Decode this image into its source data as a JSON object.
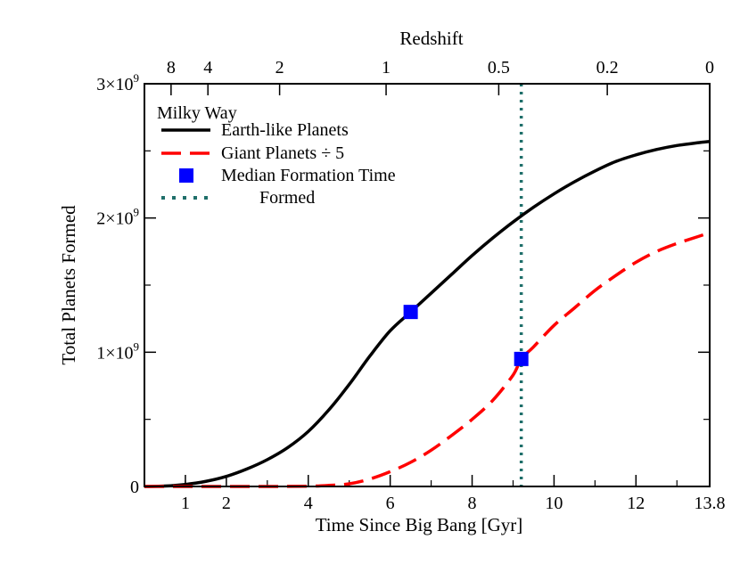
{
  "chart_data": {
    "type": "line",
    "title": "",
    "xlabel": "Time Since Big Bang [Gyr]",
    "ylabel": "Total Planets Formed",
    "top_axis_title": "Redshift",
    "xlim": [
      0,
      13.8
    ],
    "ylim": [
      0,
      3000000000
    ],
    "grid": false,
    "legend_position": "top-left",
    "legend_title": "Milky Way",
    "x_ticks": [
      {
        "value": 1,
        "label": "1"
      },
      {
        "value": 2,
        "label": "2"
      },
      {
        "value": 4,
        "label": "4"
      },
      {
        "value": 6,
        "label": "6"
      },
      {
        "value": 8,
        "label": "8"
      },
      {
        "value": 10,
        "label": "10"
      },
      {
        "value": 12,
        "label": "12"
      },
      {
        "value": 13.8,
        "label": "13.8"
      }
    ],
    "y_ticks": [
      {
        "value": 0,
        "label": "0",
        "exp": ""
      },
      {
        "value": 1000000000,
        "label": "1×10",
        "exp": "9"
      },
      {
        "value": 2000000000,
        "label": "2×10",
        "exp": "9"
      },
      {
        "value": 3000000000,
        "label": "3×10",
        "exp": "9"
      }
    ],
    "redshift_ticks": [
      {
        "time": 0.65,
        "label": "8"
      },
      {
        "time": 1.55,
        "label": "4"
      },
      {
        "time": 3.3,
        "label": "2"
      },
      {
        "time": 5.9,
        "label": "1"
      },
      {
        "time": 8.65,
        "label": "0.5"
      },
      {
        "time": 11.3,
        "label": "0.2"
      },
      {
        "time": 13.8,
        "label": "0"
      }
    ],
    "series": [
      {
        "name": "Earth-like Planets",
        "color": "#000000",
        "style": "solid",
        "x": [
          0,
          0.5,
          1,
          1.5,
          2,
          2.5,
          3,
          3.5,
          4,
          4.5,
          5,
          5.5,
          6,
          6.5,
          7,
          7.5,
          8,
          8.5,
          9,
          9.5,
          10,
          10.5,
          11,
          11.5,
          12,
          12.5,
          13,
          13.5,
          13.8
        ],
        "y": [
          0,
          3000000,
          15000000,
          38000000,
          75000000,
          130000000,
          200000000,
          290000000,
          410000000,
          570000000,
          760000000,
          970000000,
          1160000000,
          1300000000,
          1440000000,
          1580000000,
          1720000000,
          1850000000,
          1970000000,
          2080000000,
          2180000000,
          2270000000,
          2350000000,
          2420000000,
          2470000000,
          2510000000,
          2540000000,
          2560000000,
          2570000000
        ]
      },
      {
        "name": "Giant Planets ÷ 5",
        "color": "#ff0000",
        "style": "dashed",
        "x": [
          0,
          1,
          2,
          3,
          4,
          4.5,
          5,
          5.5,
          6,
          6.5,
          7,
          7.5,
          8,
          8.5,
          9,
          9.2,
          9.5,
          10,
          10.5,
          11,
          11.5,
          12,
          12.5,
          13,
          13.5,
          13.8
        ],
        "y": [
          0,
          0,
          0,
          0,
          2000000,
          8000000,
          20000000,
          55000000,
          110000000,
          180000000,
          270000000,
          380000000,
          500000000,
          640000000,
          830000000,
          950000000,
          1040000000,
          1200000000,
          1330000000,
          1460000000,
          1570000000,
          1670000000,
          1750000000,
          1810000000,
          1860000000,
          1890000000
        ]
      }
    ],
    "median_markers": [
      {
        "series": "Earth-like Planets",
        "x": 6.5,
        "y": 1300000000,
        "color": "#0000ff"
      },
      {
        "series": "Giant Planets ÷ 5",
        "x": 9.2,
        "y": 950000000,
        "color": "#0000ff"
      }
    ],
    "formed_line": {
      "x": 9.2,
      "color": "#1f6f6a"
    },
    "legend": [
      {
        "label": "Earth-like Planets",
        "kind": "solid",
        "color": "#000000"
      },
      {
        "label": "Giant Planets ÷ 5",
        "kind": "dashed",
        "color": "#ff0000"
      },
      {
        "label": "Median Formation Time",
        "kind": "square",
        "color": "#0000ff"
      },
      {
        "label": "Formed",
        "kind": "dotted",
        "color": "#1f6f6a"
      }
    ]
  }
}
